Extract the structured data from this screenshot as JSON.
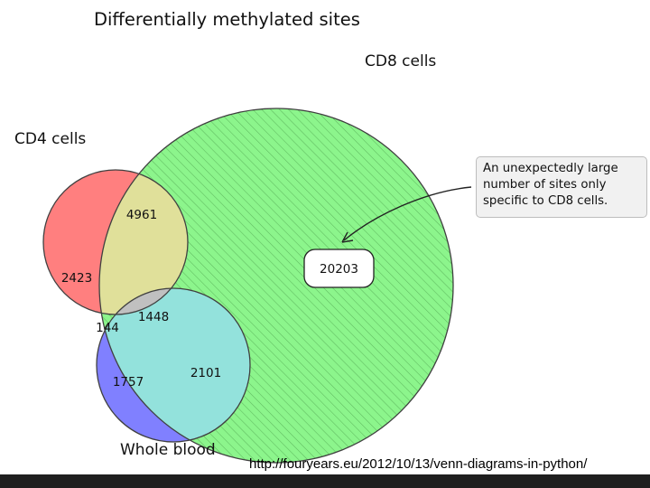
{
  "diagram": {
    "title": "Differentially methylated sites",
    "sets": [
      {
        "key": "cd4",
        "label": "CD4 cells",
        "color": "#ff7f7f"
      },
      {
        "key": "cd8",
        "label": "CD8 cells",
        "color": "#8cf58c"
      },
      {
        "key": "blood",
        "label": "Whole blood",
        "color": "#8080ff"
      }
    ],
    "regions": [
      {
        "key": "cd4_only",
        "value": "2423",
        "color": "#ff8f8f"
      },
      {
        "key": "cd4_cd8",
        "value": "4961",
        "color": "#e0e09a"
      },
      {
        "key": "cd8_only",
        "value": "20203",
        "color": "#8cf58c"
      },
      {
        "key": "all_three",
        "value": "1448",
        "color": "#c0c0c0"
      },
      {
        "key": "cd4_blood",
        "value": "144",
        "color": "#ee8ae8"
      },
      {
        "key": "cd8_blood",
        "value": "2101",
        "color": "#93e2dc"
      },
      {
        "key": "blood_only",
        "value": "1757",
        "color": "#9090ff"
      }
    ],
    "annotation": {
      "lines": [
        "An unexpectedly large",
        "number of sites only",
        "specific to CD8 cells."
      ]
    }
  },
  "source_url": "http://fouryears.eu/2012/10/13/venn-diagrams-in-python/"
}
